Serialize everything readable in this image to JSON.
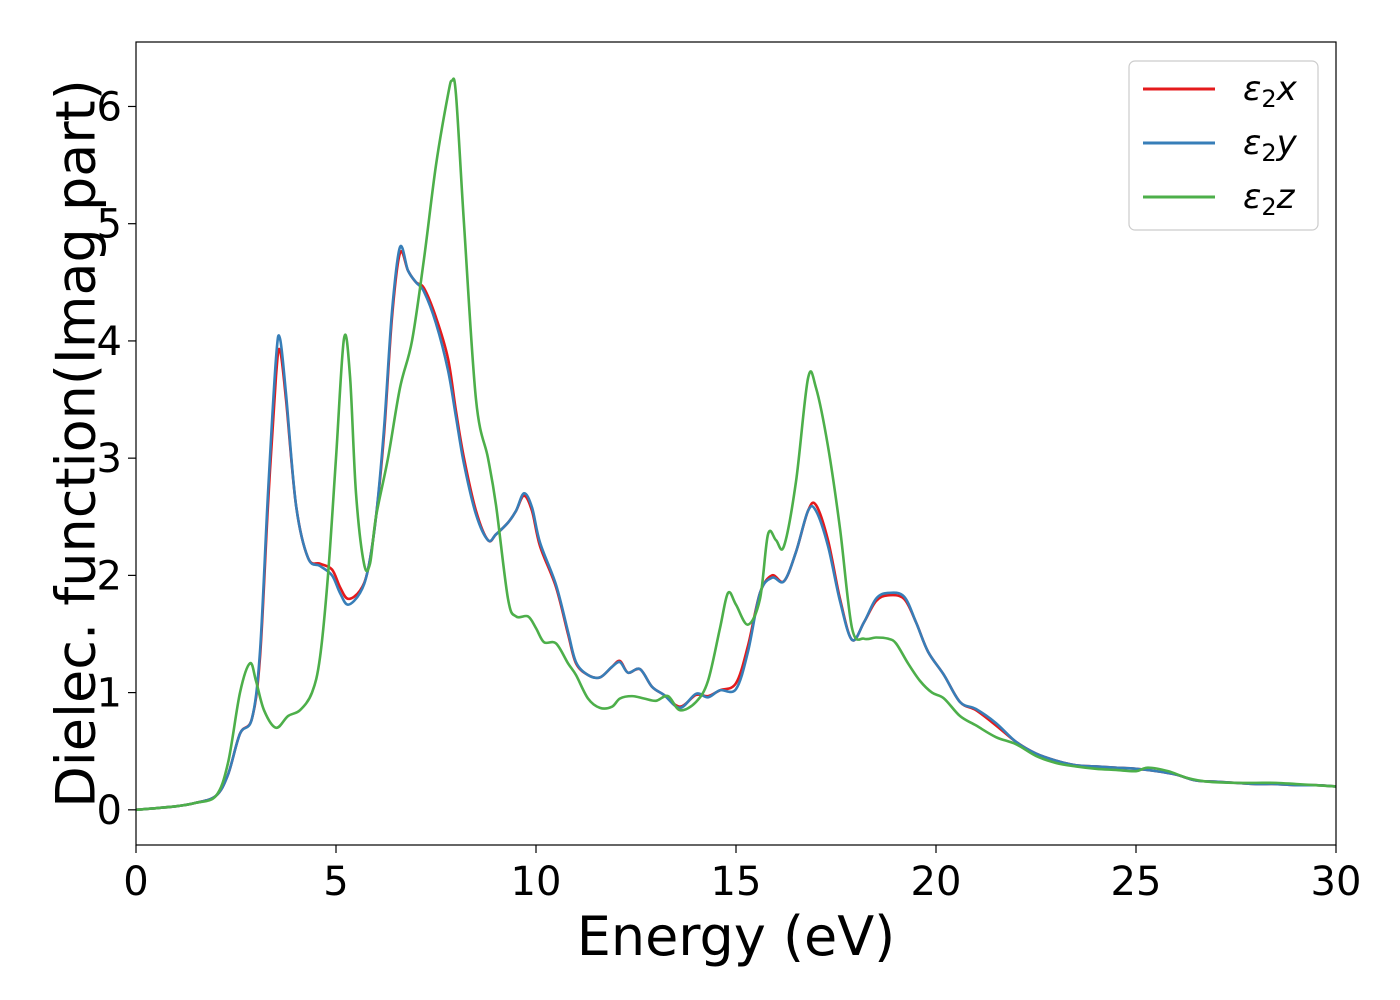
{
  "chart_data": {
    "type": "line",
    "title": "",
    "xlabel": "Energy (eV)",
    "ylabel": "Dielec. function(Imag part)",
    "xlim": [
      0,
      30
    ],
    "ylim": [
      -0.3,
      6.55
    ],
    "xticks": [
      0,
      5,
      10,
      15,
      20,
      25,
      30
    ],
    "yticks": [
      0,
      1,
      2,
      3,
      4,
      5,
      6
    ],
    "grid": false,
    "legend_position": "top-right",
    "series": [
      {
        "name": "ε₂x",
        "legend_base": "ε",
        "legend_sub": "2",
        "legend_axis": "x",
        "color": "#e41a1c",
        "points": [
          [
            0,
            0.0
          ],
          [
            1,
            0.03
          ],
          [
            1.5,
            0.06
          ],
          [
            2,
            0.12
          ],
          [
            2.3,
            0.3
          ],
          [
            2.6,
            0.65
          ],
          [
            2.9,
            0.78
          ],
          [
            3.1,
            1.3
          ],
          [
            3.3,
            2.6
          ],
          [
            3.5,
            3.7
          ],
          [
            3.6,
            3.92
          ],
          [
            3.75,
            3.5
          ],
          [
            4.0,
            2.6
          ],
          [
            4.3,
            2.15
          ],
          [
            4.6,
            2.1
          ],
          [
            4.9,
            2.05
          ],
          [
            5.1,
            1.9
          ],
          [
            5.3,
            1.8
          ],
          [
            5.6,
            1.87
          ],
          [
            5.8,
            2.05
          ],
          [
            6.0,
            2.5
          ],
          [
            6.2,
            3.2
          ],
          [
            6.4,
            4.2
          ],
          [
            6.6,
            4.75
          ],
          [
            6.8,
            4.6
          ],
          [
            7.0,
            4.5
          ],
          [
            7.2,
            4.45
          ],
          [
            7.5,
            4.2
          ],
          [
            7.8,
            3.85
          ],
          [
            8.0,
            3.4
          ],
          [
            8.2,
            3.0
          ],
          [
            8.5,
            2.55
          ],
          [
            8.8,
            2.3
          ],
          [
            9.0,
            2.35
          ],
          [
            9.3,
            2.45
          ],
          [
            9.5,
            2.55
          ],
          [
            9.7,
            2.68
          ],
          [
            9.9,
            2.55
          ],
          [
            10.1,
            2.25
          ],
          [
            10.5,
            1.9
          ],
          [
            10.8,
            1.5
          ],
          [
            11.0,
            1.25
          ],
          [
            11.3,
            1.15
          ],
          [
            11.6,
            1.13
          ],
          [
            11.9,
            1.22
          ],
          [
            12.1,
            1.27
          ],
          [
            12.3,
            1.17
          ],
          [
            12.6,
            1.2
          ],
          [
            12.9,
            1.05
          ],
          [
            13.2,
            0.98
          ],
          [
            13.6,
            0.88
          ],
          [
            14.0,
            0.98
          ],
          [
            14.3,
            0.97
          ],
          [
            14.6,
            1.02
          ],
          [
            15.0,
            1.08
          ],
          [
            15.3,
            1.4
          ],
          [
            15.6,
            1.85
          ],
          [
            15.9,
            2.0
          ],
          [
            16.2,
            1.95
          ],
          [
            16.5,
            2.2
          ],
          [
            16.8,
            2.55
          ],
          [
            17.0,
            2.6
          ],
          [
            17.3,
            2.3
          ],
          [
            17.6,
            1.8
          ],
          [
            17.9,
            1.45
          ],
          [
            18.2,
            1.6
          ],
          [
            18.5,
            1.78
          ],
          [
            18.8,
            1.83
          ],
          [
            19.2,
            1.8
          ],
          [
            19.5,
            1.6
          ],
          [
            19.8,
            1.35
          ],
          [
            20.2,
            1.15
          ],
          [
            20.6,
            0.92
          ],
          [
            21.0,
            0.85
          ],
          [
            21.5,
            0.72
          ],
          [
            22.0,
            0.58
          ],
          [
            22.5,
            0.48
          ],
          [
            23.0,
            0.42
          ],
          [
            23.5,
            0.38
          ],
          [
            24.0,
            0.37
          ],
          [
            24.5,
            0.36
          ],
          [
            25.0,
            0.35
          ],
          [
            25.5,
            0.33
          ],
          [
            26.0,
            0.3
          ],
          [
            26.5,
            0.25
          ],
          [
            27.0,
            0.24
          ],
          [
            27.5,
            0.23
          ],
          [
            28.0,
            0.22
          ],
          [
            28.5,
            0.22
          ],
          [
            29.0,
            0.21
          ],
          [
            29.5,
            0.21
          ],
          [
            30,
            0.2
          ]
        ]
      },
      {
        "name": "ε₂y",
        "legend_base": "ε",
        "legend_sub": "2",
        "legend_axis": "y",
        "color": "#377eb8",
        "points": [
          [
            0,
            0.0
          ],
          [
            1,
            0.03
          ],
          [
            1.5,
            0.06
          ],
          [
            2,
            0.12
          ],
          [
            2.3,
            0.3
          ],
          [
            2.6,
            0.65
          ],
          [
            2.9,
            0.78
          ],
          [
            3.1,
            1.35
          ],
          [
            3.3,
            2.7
          ],
          [
            3.5,
            3.85
          ],
          [
            3.6,
            4.02
          ],
          [
            3.75,
            3.55
          ],
          [
            4.0,
            2.6
          ],
          [
            4.3,
            2.15
          ],
          [
            4.6,
            2.08
          ],
          [
            4.9,
            2.0
          ],
          [
            5.1,
            1.85
          ],
          [
            5.3,
            1.75
          ],
          [
            5.6,
            1.85
          ],
          [
            5.8,
            2.05
          ],
          [
            6.0,
            2.5
          ],
          [
            6.2,
            3.25
          ],
          [
            6.4,
            4.25
          ],
          [
            6.6,
            4.8
          ],
          [
            6.8,
            4.6
          ],
          [
            7.0,
            4.5
          ],
          [
            7.2,
            4.42
          ],
          [
            7.5,
            4.15
          ],
          [
            7.8,
            3.75
          ],
          [
            8.0,
            3.35
          ],
          [
            8.2,
            2.95
          ],
          [
            8.5,
            2.52
          ],
          [
            8.8,
            2.3
          ],
          [
            9.0,
            2.35
          ],
          [
            9.3,
            2.45
          ],
          [
            9.5,
            2.55
          ],
          [
            9.7,
            2.7
          ],
          [
            9.9,
            2.58
          ],
          [
            10.1,
            2.28
          ],
          [
            10.5,
            1.92
          ],
          [
            10.8,
            1.52
          ],
          [
            11.0,
            1.26
          ],
          [
            11.3,
            1.15
          ],
          [
            11.6,
            1.13
          ],
          [
            11.9,
            1.22
          ],
          [
            12.1,
            1.26
          ],
          [
            12.3,
            1.17
          ],
          [
            12.6,
            1.2
          ],
          [
            12.9,
            1.05
          ],
          [
            13.2,
            0.98
          ],
          [
            13.6,
            0.87
          ],
          [
            14.0,
            0.99
          ],
          [
            14.3,
            0.96
          ],
          [
            14.6,
            1.02
          ],
          [
            15.0,
            1.03
          ],
          [
            15.3,
            1.35
          ],
          [
            15.6,
            1.85
          ],
          [
            15.9,
            1.98
          ],
          [
            16.2,
            1.95
          ],
          [
            16.5,
            2.2
          ],
          [
            16.8,
            2.55
          ],
          [
            17.0,
            2.55
          ],
          [
            17.3,
            2.25
          ],
          [
            17.6,
            1.78
          ],
          [
            17.9,
            1.45
          ],
          [
            18.2,
            1.6
          ],
          [
            18.5,
            1.8
          ],
          [
            18.8,
            1.85
          ],
          [
            19.2,
            1.82
          ],
          [
            19.5,
            1.6
          ],
          [
            19.8,
            1.35
          ],
          [
            20.2,
            1.15
          ],
          [
            20.6,
            0.92
          ],
          [
            21.0,
            0.86
          ],
          [
            21.5,
            0.74
          ],
          [
            22.0,
            0.58
          ],
          [
            22.5,
            0.48
          ],
          [
            23.0,
            0.42
          ],
          [
            23.5,
            0.38
          ],
          [
            24.0,
            0.37
          ],
          [
            24.5,
            0.36
          ],
          [
            25.0,
            0.35
          ],
          [
            25.5,
            0.33
          ],
          [
            26.0,
            0.3
          ],
          [
            26.5,
            0.25
          ],
          [
            27.0,
            0.24
          ],
          [
            27.5,
            0.23
          ],
          [
            28.0,
            0.22
          ],
          [
            28.5,
            0.22
          ],
          [
            29.0,
            0.21
          ],
          [
            29.5,
            0.21
          ],
          [
            30,
            0.2
          ]
        ]
      },
      {
        "name": "ε₂z",
        "legend_base": "ε",
        "legend_sub": "2",
        "legend_axis": "z",
        "color": "#4daf4a",
        "points": [
          [
            0,
            0.0
          ],
          [
            1,
            0.03
          ],
          [
            1.5,
            0.06
          ],
          [
            2,
            0.12
          ],
          [
            2.3,
            0.4
          ],
          [
            2.6,
            1.0
          ],
          [
            2.85,
            1.25
          ],
          [
            3.0,
            1.1
          ],
          [
            3.2,
            0.85
          ],
          [
            3.5,
            0.7
          ],
          [
            3.8,
            0.8
          ],
          [
            4.1,
            0.85
          ],
          [
            4.4,
            1.0
          ],
          [
            4.6,
            1.3
          ],
          [
            4.8,
            2.0
          ],
          [
            5.0,
            3.0
          ],
          [
            5.2,
            4.02
          ],
          [
            5.35,
            3.7
          ],
          [
            5.5,
            2.7
          ],
          [
            5.7,
            2.1
          ],
          [
            5.85,
            2.1
          ],
          [
            6.0,
            2.5
          ],
          [
            6.3,
            3.0
          ],
          [
            6.6,
            3.6
          ],
          [
            6.9,
            4.0
          ],
          [
            7.2,
            4.7
          ],
          [
            7.5,
            5.5
          ],
          [
            7.8,
            6.1
          ],
          [
            7.9,
            6.22
          ],
          [
            8.0,
            6.1
          ],
          [
            8.2,
            5.0
          ],
          [
            8.5,
            3.5
          ],
          [
            8.8,
            3.0
          ],
          [
            9.0,
            2.6
          ],
          [
            9.3,
            1.8
          ],
          [
            9.5,
            1.65
          ],
          [
            9.8,
            1.65
          ],
          [
            10.0,
            1.55
          ],
          [
            10.2,
            1.43
          ],
          [
            10.5,
            1.42
          ],
          [
            10.8,
            1.25
          ],
          [
            11.0,
            1.15
          ],
          [
            11.3,
            0.95
          ],
          [
            11.6,
            0.87
          ],
          [
            11.9,
            0.88
          ],
          [
            12.1,
            0.95
          ],
          [
            12.4,
            0.97
          ],
          [
            12.7,
            0.95
          ],
          [
            13.0,
            0.93
          ],
          [
            13.3,
            0.97
          ],
          [
            13.6,
            0.85
          ],
          [
            14.0,
            0.92
          ],
          [
            14.3,
            1.1
          ],
          [
            14.6,
            1.55
          ],
          [
            14.8,
            1.85
          ],
          [
            15.0,
            1.75
          ],
          [
            15.3,
            1.58
          ],
          [
            15.6,
            1.8
          ],
          [
            15.8,
            2.35
          ],
          [
            16.0,
            2.3
          ],
          [
            16.2,
            2.25
          ],
          [
            16.5,
            2.8
          ],
          [
            16.8,
            3.68
          ],
          [
            17.0,
            3.6
          ],
          [
            17.3,
            3.1
          ],
          [
            17.6,
            2.4
          ],
          [
            17.9,
            1.55
          ],
          [
            18.2,
            1.46
          ],
          [
            18.5,
            1.47
          ],
          [
            18.8,
            1.46
          ],
          [
            19.0,
            1.42
          ],
          [
            19.3,
            1.25
          ],
          [
            19.6,
            1.1
          ],
          [
            19.9,
            1.0
          ],
          [
            20.2,
            0.95
          ],
          [
            20.6,
            0.8
          ],
          [
            21.0,
            0.72
          ],
          [
            21.5,
            0.62
          ],
          [
            22.0,
            0.56
          ],
          [
            22.5,
            0.46
          ],
          [
            23.0,
            0.4
          ],
          [
            23.5,
            0.37
          ],
          [
            24.0,
            0.35
          ],
          [
            24.5,
            0.34
          ],
          [
            25.0,
            0.33
          ],
          [
            25.3,
            0.36
          ],
          [
            25.8,
            0.33
          ],
          [
            26.3,
            0.27
          ],
          [
            26.8,
            0.24
          ],
          [
            27.5,
            0.23
          ],
          [
            28.0,
            0.23
          ],
          [
            28.5,
            0.23
          ],
          [
            29.0,
            0.22
          ],
          [
            29.5,
            0.21
          ],
          [
            30,
            0.2
          ]
        ]
      }
    ]
  }
}
